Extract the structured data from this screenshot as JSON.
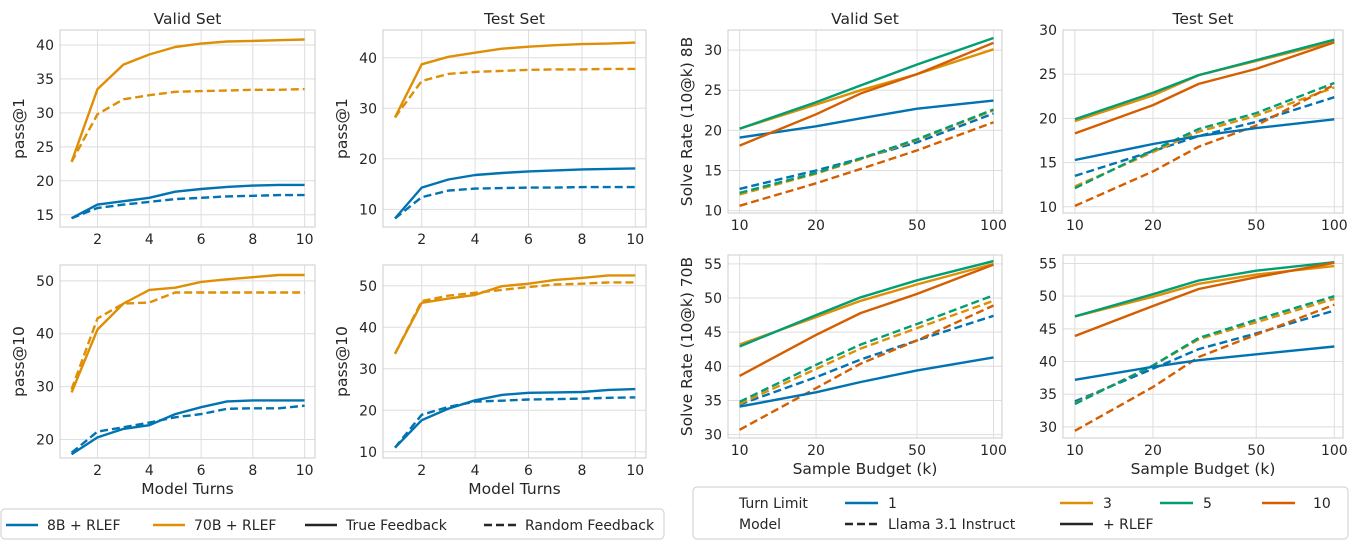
{
  "colors": {
    "8b": "#0173b2",
    "70b": "#de8f05",
    "t1": "#0173b2",
    "t3": "#de8f05",
    "t5": "#029e73",
    "t10": "#d55e00"
  },
  "chart_data": [
    {
      "type": "line",
      "title": "Valid Set",
      "xlabel": "",
      "ylabel": "pass@1",
      "xlim": [
        0.55,
        10.4
      ],
      "ylim": [
        13.2,
        42.2
      ],
      "xticks": [
        2,
        4,
        6,
        8,
        10
      ],
      "yticks": [
        15,
        20,
        25,
        30,
        35,
        40
      ],
      "x": [
        1,
        2,
        3,
        4,
        5,
        6,
        7,
        8,
        9,
        10
      ],
      "series": [
        {
          "name": "70B + RLEF",
          "feedback": "True Feedback",
          "color": "70b",
          "values": [
            22.8,
            33.5,
            37.1,
            38.6,
            39.7,
            40.2,
            40.5,
            40.6,
            40.7,
            40.8
          ]
        },
        {
          "name": "70B + RLEF",
          "feedback": "Random Feedback",
          "color": "70b",
          "values": [
            22.8,
            29.8,
            32.0,
            32.6,
            33.1,
            33.2,
            33.3,
            33.4,
            33.4,
            33.5
          ]
        },
        {
          "name": "8B + RLEF",
          "feedback": "True Feedback",
          "color": "8b",
          "values": [
            14.5,
            16.5,
            17.0,
            17.5,
            18.4,
            18.8,
            19.1,
            19.3,
            19.4,
            19.4
          ]
        },
        {
          "name": "8B + RLEF",
          "feedback": "Random Feedback",
          "color": "8b",
          "values": [
            14.5,
            16.0,
            16.5,
            16.9,
            17.3,
            17.5,
            17.7,
            17.8,
            17.9,
            17.9
          ]
        }
      ]
    },
    {
      "type": "line",
      "title": "Test Set",
      "xlabel": "",
      "ylabel": "pass@1",
      "xlim": [
        0.55,
        10.4
      ],
      "ylim": [
        6.5,
        45.5
      ],
      "xticks": [
        2,
        4,
        6,
        8,
        10
      ],
      "yticks": [
        10,
        20,
        30,
        40
      ],
      "x": [
        1,
        2,
        3,
        4,
        5,
        6,
        7,
        8,
        9,
        10
      ],
      "series": [
        {
          "name": "70B + RLEF",
          "feedback": "True Feedback",
          "color": "70b",
          "values": [
            28.2,
            38.7,
            40.2,
            41.0,
            41.8,
            42.2,
            42.5,
            42.7,
            42.8,
            43.0
          ]
        },
        {
          "name": "70B + RLEF",
          "feedback": "Random Feedback",
          "color": "70b",
          "values": [
            28.2,
            35.4,
            36.8,
            37.2,
            37.4,
            37.6,
            37.7,
            37.7,
            37.8,
            37.8
          ]
        },
        {
          "name": "8B + RLEF",
          "feedback": "True Feedback",
          "color": "8b",
          "values": [
            8.2,
            14.3,
            15.9,
            16.8,
            17.2,
            17.5,
            17.7,
            17.9,
            18.0,
            18.1
          ]
        },
        {
          "name": "8B + RLEF",
          "feedback": "Random Feedback",
          "color": "8b",
          "values": [
            8.2,
            12.4,
            13.7,
            14.1,
            14.2,
            14.3,
            14.3,
            14.4,
            14.4,
            14.4
          ]
        }
      ]
    },
    {
      "type": "line",
      "title": "",
      "xlabel": "Model Turns",
      "ylabel": "pass@10",
      "xlim": [
        0.55,
        10.4
      ],
      "ylim": [
        16.5,
        53.0
      ],
      "xticks": [
        2,
        4,
        6,
        8,
        10
      ],
      "yticks": [
        20,
        30,
        40,
        50
      ],
      "x": [
        1,
        2,
        3,
        4,
        5,
        6,
        7,
        8,
        9,
        10
      ],
      "series": [
        {
          "name": "70B + RLEF",
          "feedback": "True Feedback",
          "color": "70b",
          "values": [
            28.9,
            40.8,
            45.7,
            48.3,
            48.7,
            49.8,
            50.3,
            50.7,
            51.1,
            51.1
          ]
        },
        {
          "name": "70B + RLEF",
          "feedback": "Random Feedback",
          "color": "70b",
          "values": [
            29.5,
            42.9,
            45.7,
            45.9,
            47.8,
            47.8,
            47.8,
            47.8,
            47.8,
            47.8
          ]
        },
        {
          "name": "8B + RLEF",
          "feedback": "True Feedback",
          "color": "8b",
          "values": [
            17.2,
            20.4,
            22.0,
            22.7,
            24.8,
            26.1,
            27.2,
            27.4,
            27.4,
            27.4
          ]
        },
        {
          "name": "8B + RLEF",
          "feedback": "Random Feedback",
          "color": "8b",
          "values": [
            17.5,
            21.5,
            22.3,
            23.2,
            24.2,
            24.8,
            25.8,
            25.9,
            25.9,
            26.4
          ]
        }
      ]
    },
    {
      "type": "line",
      "title": "",
      "xlabel": "Model Turns",
      "ylabel": "pass@10",
      "xlim": [
        0.55,
        10.4
      ],
      "ylim": [
        8.5,
        55.0
      ],
      "xticks": [
        2,
        4,
        6,
        8,
        10
      ],
      "yticks": [
        10,
        20,
        30,
        40,
        50
      ],
      "x": [
        1,
        2,
        3,
        4,
        5,
        6,
        7,
        8,
        9,
        10
      ],
      "series": [
        {
          "name": "70B + RLEF",
          "feedback": "True Feedback",
          "color": "70b",
          "values": [
            33.6,
            45.9,
            46.9,
            47.8,
            49.9,
            50.5,
            51.4,
            51.9,
            52.5,
            52.5
          ]
        },
        {
          "name": "70B + RLEF",
          "feedback": "Random Feedback",
          "color": "70b",
          "values": [
            33.6,
            46.3,
            47.6,
            48.3,
            49.0,
            49.7,
            50.3,
            50.5,
            50.8,
            50.8
          ]
        },
        {
          "name": "8B + RLEF",
          "feedback": "True Feedback",
          "color": "8b",
          "values": [
            11.0,
            17.6,
            20.4,
            22.4,
            23.7,
            24.2,
            24.3,
            24.4,
            24.9,
            25.1
          ]
        },
        {
          "name": "8B + RLEF",
          "feedback": "Random Feedback",
          "color": "8b",
          "values": [
            11.0,
            18.9,
            20.8,
            22.1,
            22.3,
            22.6,
            22.7,
            22.8,
            23.0,
            23.1
          ]
        }
      ]
    },
    {
      "type": "line",
      "title": "Valid Set",
      "xlabel": "",
      "ylabel": "Solve Rate (10@k) 8B",
      "xscale": "log",
      "xlim": [
        9.0,
        108
      ],
      "ylim": [
        9.7,
        32.5
      ],
      "xticks": [
        10,
        20,
        50,
        100
      ],
      "yticks": [
        10,
        15,
        20,
        25,
        30
      ],
      "x": [
        10,
        20,
        30,
        50,
        100
      ],
      "series": [
        {
          "turn_limit": "1",
          "model": "+ RLEF",
          "color": "t1",
          "values": [
            19.1,
            20.5,
            21.5,
            22.7,
            23.7
          ]
        },
        {
          "turn_limit": "3",
          "model": "+ RLEF",
          "color": "t3",
          "values": [
            20.2,
            23.2,
            25.0,
            27.0,
            30.1
          ]
        },
        {
          "turn_limit": "5",
          "model": "+ RLEF",
          "color": "t5",
          "values": [
            20.2,
            23.5,
            25.6,
            28.2,
            31.5
          ]
        },
        {
          "turn_limit": "10",
          "model": "+ RLEF",
          "color": "t10",
          "values": [
            18.1,
            22.0,
            24.6,
            27.0,
            30.9
          ]
        },
        {
          "turn_limit": "1",
          "model": "Llama 3.1 Instruct",
          "color": "t1",
          "values": [
            12.7,
            15.0,
            16.5,
            18.5,
            22.1
          ]
        },
        {
          "turn_limit": "3",
          "model": "Llama 3.1 Instruct",
          "color": "t3",
          "values": [
            12.0,
            14.6,
            16.4,
            18.8,
            22.5
          ]
        },
        {
          "turn_limit": "5",
          "model": "Llama 3.1 Instruct",
          "color": "t5",
          "values": [
            12.2,
            14.7,
            16.5,
            18.9,
            22.6
          ]
        },
        {
          "turn_limit": "10",
          "model": "Llama 3.1 Instruct",
          "color": "t10",
          "values": [
            10.6,
            13.4,
            15.2,
            17.5,
            21.0
          ]
        }
      ]
    },
    {
      "type": "line",
      "title": "Test Set",
      "xlabel": "",
      "ylabel": "",
      "xscale": "log",
      "xlim": [
        9.0,
        108
      ],
      "ylim": [
        9.3,
        30.0
      ],
      "xticks": [
        10,
        20,
        50,
        100
      ],
      "yticks": [
        10,
        15,
        20,
        25,
        30
      ],
      "x": [
        10,
        20,
        30,
        50,
        100
      ],
      "series": [
        {
          "turn_limit": "1",
          "model": "+ RLEF",
          "color": "t1",
          "values": [
            15.3,
            17.1,
            18.0,
            18.9,
            19.9
          ]
        },
        {
          "turn_limit": "3",
          "model": "+ RLEF",
          "color": "t3",
          "values": [
            19.7,
            22.6,
            24.9,
            26.5,
            28.7
          ]
        },
        {
          "turn_limit": "5",
          "model": "+ RLEF",
          "color": "t5",
          "values": [
            19.9,
            22.9,
            24.9,
            26.6,
            28.9
          ]
        },
        {
          "turn_limit": "10",
          "model": "+ RLEF",
          "color": "t10",
          "values": [
            18.3,
            21.5,
            23.9,
            25.6,
            28.6
          ]
        },
        {
          "turn_limit": "1",
          "model": "Llama 3.1 Instruct",
          "color": "t1",
          "values": [
            13.5,
            16.3,
            18.0,
            19.6,
            22.4
          ]
        },
        {
          "turn_limit": "3",
          "model": "Llama 3.1 Instruct",
          "color": "t3",
          "values": [
            12.3,
            16.2,
            18.5,
            20.3,
            23.5
          ]
        },
        {
          "turn_limit": "5",
          "model": "Llama 3.1 Instruct",
          "color": "t5",
          "values": [
            12.1,
            16.4,
            18.8,
            20.6,
            24.0
          ]
        },
        {
          "turn_limit": "10",
          "model": "Llama 3.1 Instruct",
          "color": "t10",
          "values": [
            10.1,
            14.0,
            16.8,
            19.2,
            23.8
          ]
        }
      ]
    },
    {
      "type": "line",
      "title": "",
      "xlabel": "Sample Budget (k)",
      "ylabel": "Solve Rate (10@k) 70B",
      "xscale": "log",
      "xlim": [
        9.0,
        108
      ],
      "ylim": [
        29.5,
        56.3
      ],
      "xticks": [
        10,
        20,
        50,
        100
      ],
      "yticks": [
        30,
        35,
        40,
        45,
        50,
        55
      ],
      "x": [
        10,
        20,
        30,
        50,
        100
      ],
      "series": [
        {
          "turn_limit": "1",
          "model": "+ RLEF",
          "color": "t1",
          "values": [
            34.1,
            36.2,
            37.7,
            39.4,
            41.3
          ]
        },
        {
          "turn_limit": "3",
          "model": "+ RLEF",
          "color": "t3",
          "values": [
            43.2,
            47.2,
            49.6,
            52.0,
            55.0
          ]
        },
        {
          "turn_limit": "5",
          "model": "+ RLEF",
          "color": "t5",
          "values": [
            42.9,
            47.5,
            50.1,
            52.6,
            55.4
          ]
        },
        {
          "turn_limit": "10",
          "model": "+ RLEF",
          "color": "t10",
          "values": [
            38.6,
            44.6,
            47.8,
            50.6,
            54.9
          ]
        },
        {
          "turn_limit": "1",
          "model": "Llama 3.1 Instruct",
          "color": "t1",
          "values": [
            34.4,
            38.4,
            41.0,
            43.8,
            47.4
          ]
        },
        {
          "turn_limit": "3",
          "model": "Llama 3.1 Instruct",
          "color": "t3",
          "values": [
            34.5,
            39.6,
            42.6,
            45.6,
            49.6
          ]
        },
        {
          "turn_limit": "5",
          "model": "Llama 3.1 Instruct",
          "color": "t5",
          "values": [
            34.8,
            40.2,
            43.2,
            46.2,
            50.4
          ]
        },
        {
          "turn_limit": "10",
          "model": "Llama 3.1 Instruct",
          "color": "t10",
          "values": [
            30.7,
            36.8,
            40.4,
            43.8,
            48.9
          ]
        }
      ]
    },
    {
      "type": "line",
      "title": "",
      "xlabel": "Sample Budget (k)",
      "ylabel": "",
      "xscale": "log",
      "xlim": [
        9.0,
        108
      ],
      "ylim": [
        28.3,
        56.3
      ],
      "xticks": [
        10,
        20,
        50,
        100
      ],
      "yticks": [
        30,
        35,
        40,
        45,
        50,
        55
      ],
      "x": [
        10,
        20,
        30,
        50,
        100
      ],
      "series": [
        {
          "turn_limit": "1",
          "model": "+ RLEF",
          "color": "t1",
          "values": [
            37.2,
            39.2,
            40.2,
            41.1,
            42.3
          ]
        },
        {
          "turn_limit": "3",
          "model": "+ RLEF",
          "color": "t3",
          "values": [
            46.9,
            49.9,
            51.9,
            53.3,
            54.6
          ]
        },
        {
          "turn_limit": "5",
          "model": "+ RLEF",
          "color": "t5",
          "values": [
            46.9,
            50.3,
            52.4,
            53.9,
            55.2
          ]
        },
        {
          "turn_limit": "10",
          "model": "+ RLEF",
          "color": "t10",
          "values": [
            43.9,
            48.5,
            51.1,
            52.9,
            55.1
          ]
        },
        {
          "turn_limit": "1",
          "model": "Llama 3.1 Instruct",
          "color": "t1",
          "values": [
            33.9,
            38.9,
            41.9,
            44.3,
            47.8
          ]
        },
        {
          "turn_limit": "3",
          "model": "Llama 3.1 Instruct",
          "color": "t3",
          "values": [
            33.6,
            39.4,
            43.4,
            46.0,
            49.6
          ]
        },
        {
          "turn_limit": "5",
          "model": "Llama 3.1 Instruct",
          "color": "t5",
          "values": [
            33.5,
            39.4,
            43.6,
            46.4,
            50.0
          ]
        },
        {
          "turn_limit": "10",
          "model": "Llama 3.1 Instruct",
          "color": "t10",
          "values": [
            29.4,
            36.1,
            40.7,
            44.1,
            48.7
          ]
        }
      ]
    }
  ],
  "legend_left": {
    "items": [
      {
        "label": "8B + RLEF",
        "color": "8b",
        "style": "solid"
      },
      {
        "label": "70B + RLEF",
        "color": "70b",
        "style": "solid"
      },
      {
        "label": "True Feedback",
        "color": "#262626",
        "style": "solid"
      },
      {
        "label": "Random Feedback",
        "color": "#262626",
        "style": "dashed"
      }
    ]
  },
  "legend_right": {
    "turn_limit_label": "Turn Limit",
    "model_label": "Model",
    "turns": [
      {
        "label": "1",
        "color": "t1"
      },
      {
        "label": "3",
        "color": "t3"
      },
      {
        "label": "5",
        "color": "t5"
      },
      {
        "label": "10",
        "color": "t10"
      }
    ],
    "models": [
      {
        "label": "Llama 3.1 Instruct",
        "style": "dashed"
      },
      {
        "label": "+ RLEF",
        "style": "solid"
      }
    ]
  }
}
